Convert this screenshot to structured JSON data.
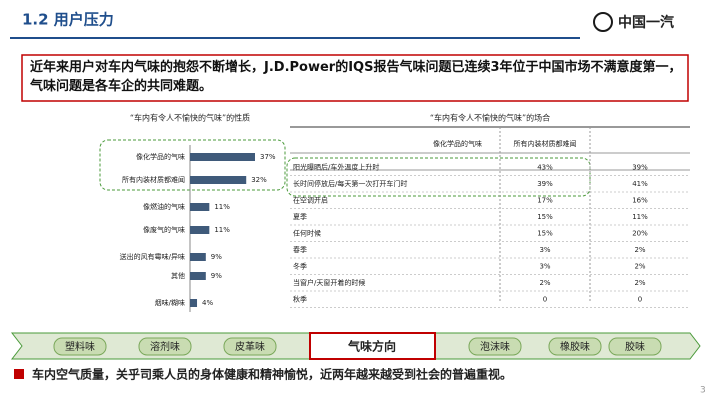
{
  "header": {
    "title": "1.2 用户压力",
    "logo": "中国一汽"
  },
  "intro": "近年来用户对车内气味的抱怨不断增长，J.D.Power的IQS报告气味问题已连续3年位于中国市场不满意度第一，气味问题是各车企的共同难题。",
  "chart_data": {
    "type": "bar",
    "orientation": "horizontal",
    "title": "“车内有令人不愉快的气味”的性质",
    "categories": [
      "像化学品的气味",
      "所有内装材质都难闻",
      "像燃油的气味",
      "像废气的气味",
      "送出的风有霉味/异味",
      "其他",
      "烟味/糊味"
    ],
    "values": [
      37,
      32,
      11,
      11,
      9,
      9,
      4
    ],
    "value_labels": [
      "37%",
      "32%",
      "11%",
      "11%",
      "9%",
      "9%",
      "4%"
    ],
    "color": "#3f5a7a"
  },
  "table": {
    "title": "“车内有令人不愉快的气味”的场合",
    "columns": [
      "像化学品的气味",
      "所有内装材质都难闻"
    ],
    "rows": [
      [
        "阳光曝晒后/车外温度上升时",
        "43%",
        "39%"
      ],
      [
        "长时间停放后/每天第一次打开车门时",
        "39%",
        "41%"
      ],
      [
        "在空调开启",
        "17%",
        "16%"
      ],
      [
        "夏季",
        "15%",
        "11%"
      ],
      [
        "任何时候",
        "15%",
        "20%"
      ],
      [
        "春季",
        "3%",
        "2%"
      ],
      [
        "冬季",
        "3%",
        "2%"
      ],
      [
        "当窗户/天窗开着的时候",
        "2%",
        "2%"
      ],
      [
        "秋季",
        "0",
        "0"
      ]
    ]
  },
  "odors": [
    "塑料味",
    "溶剂味",
    "皮革味",
    "气味方向",
    "泡沫味",
    "橡胶味",
    "胶味"
  ],
  "footer": {
    "text": "车内空气质量，关乎司乘人员的身体健康和精神愉悦，近两年越来越受到社会的普遍重视。",
    "page": "3"
  }
}
